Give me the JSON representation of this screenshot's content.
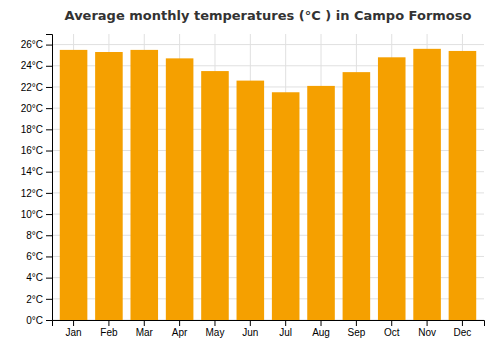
{
  "chart_data": {
    "type": "bar",
    "title": "Average monthly temperatures (°C ) in Campo Formoso",
    "categories": [
      "Jan",
      "Feb",
      "Mar",
      "Apr",
      "May",
      "Jun",
      "Jul",
      "Aug",
      "Sep",
      "Oct",
      "Nov",
      "Dec"
    ],
    "values": [
      25.5,
      25.3,
      25.5,
      24.7,
      23.5,
      22.6,
      21.5,
      22.1,
      23.4,
      24.8,
      25.6,
      25.4
    ],
    "color": "#F5A000",
    "ylim": [
      0,
      27
    ],
    "yticks": [
      {
        "value": 0,
        "label": "0°C"
      },
      {
        "value": 2,
        "label": "2°C"
      },
      {
        "value": 4,
        "label": "4°C"
      },
      {
        "value": 6,
        "label": "6°C"
      },
      {
        "value": 8,
        "label": "8°C"
      },
      {
        "value": 10,
        "label": "10°C"
      },
      {
        "value": 12,
        "label": "12°C"
      },
      {
        "value": 14,
        "label": "14°C"
      },
      {
        "value": 16,
        "label": "16°C"
      },
      {
        "value": 18,
        "label": "18°C"
      },
      {
        "value": 20,
        "label": "20°C"
      },
      {
        "value": 22,
        "label": "22°C"
      },
      {
        "value": 24,
        "label": "24°C"
      },
      {
        "value": 26,
        "label": "26°C"
      }
    ],
    "grid": true
  }
}
